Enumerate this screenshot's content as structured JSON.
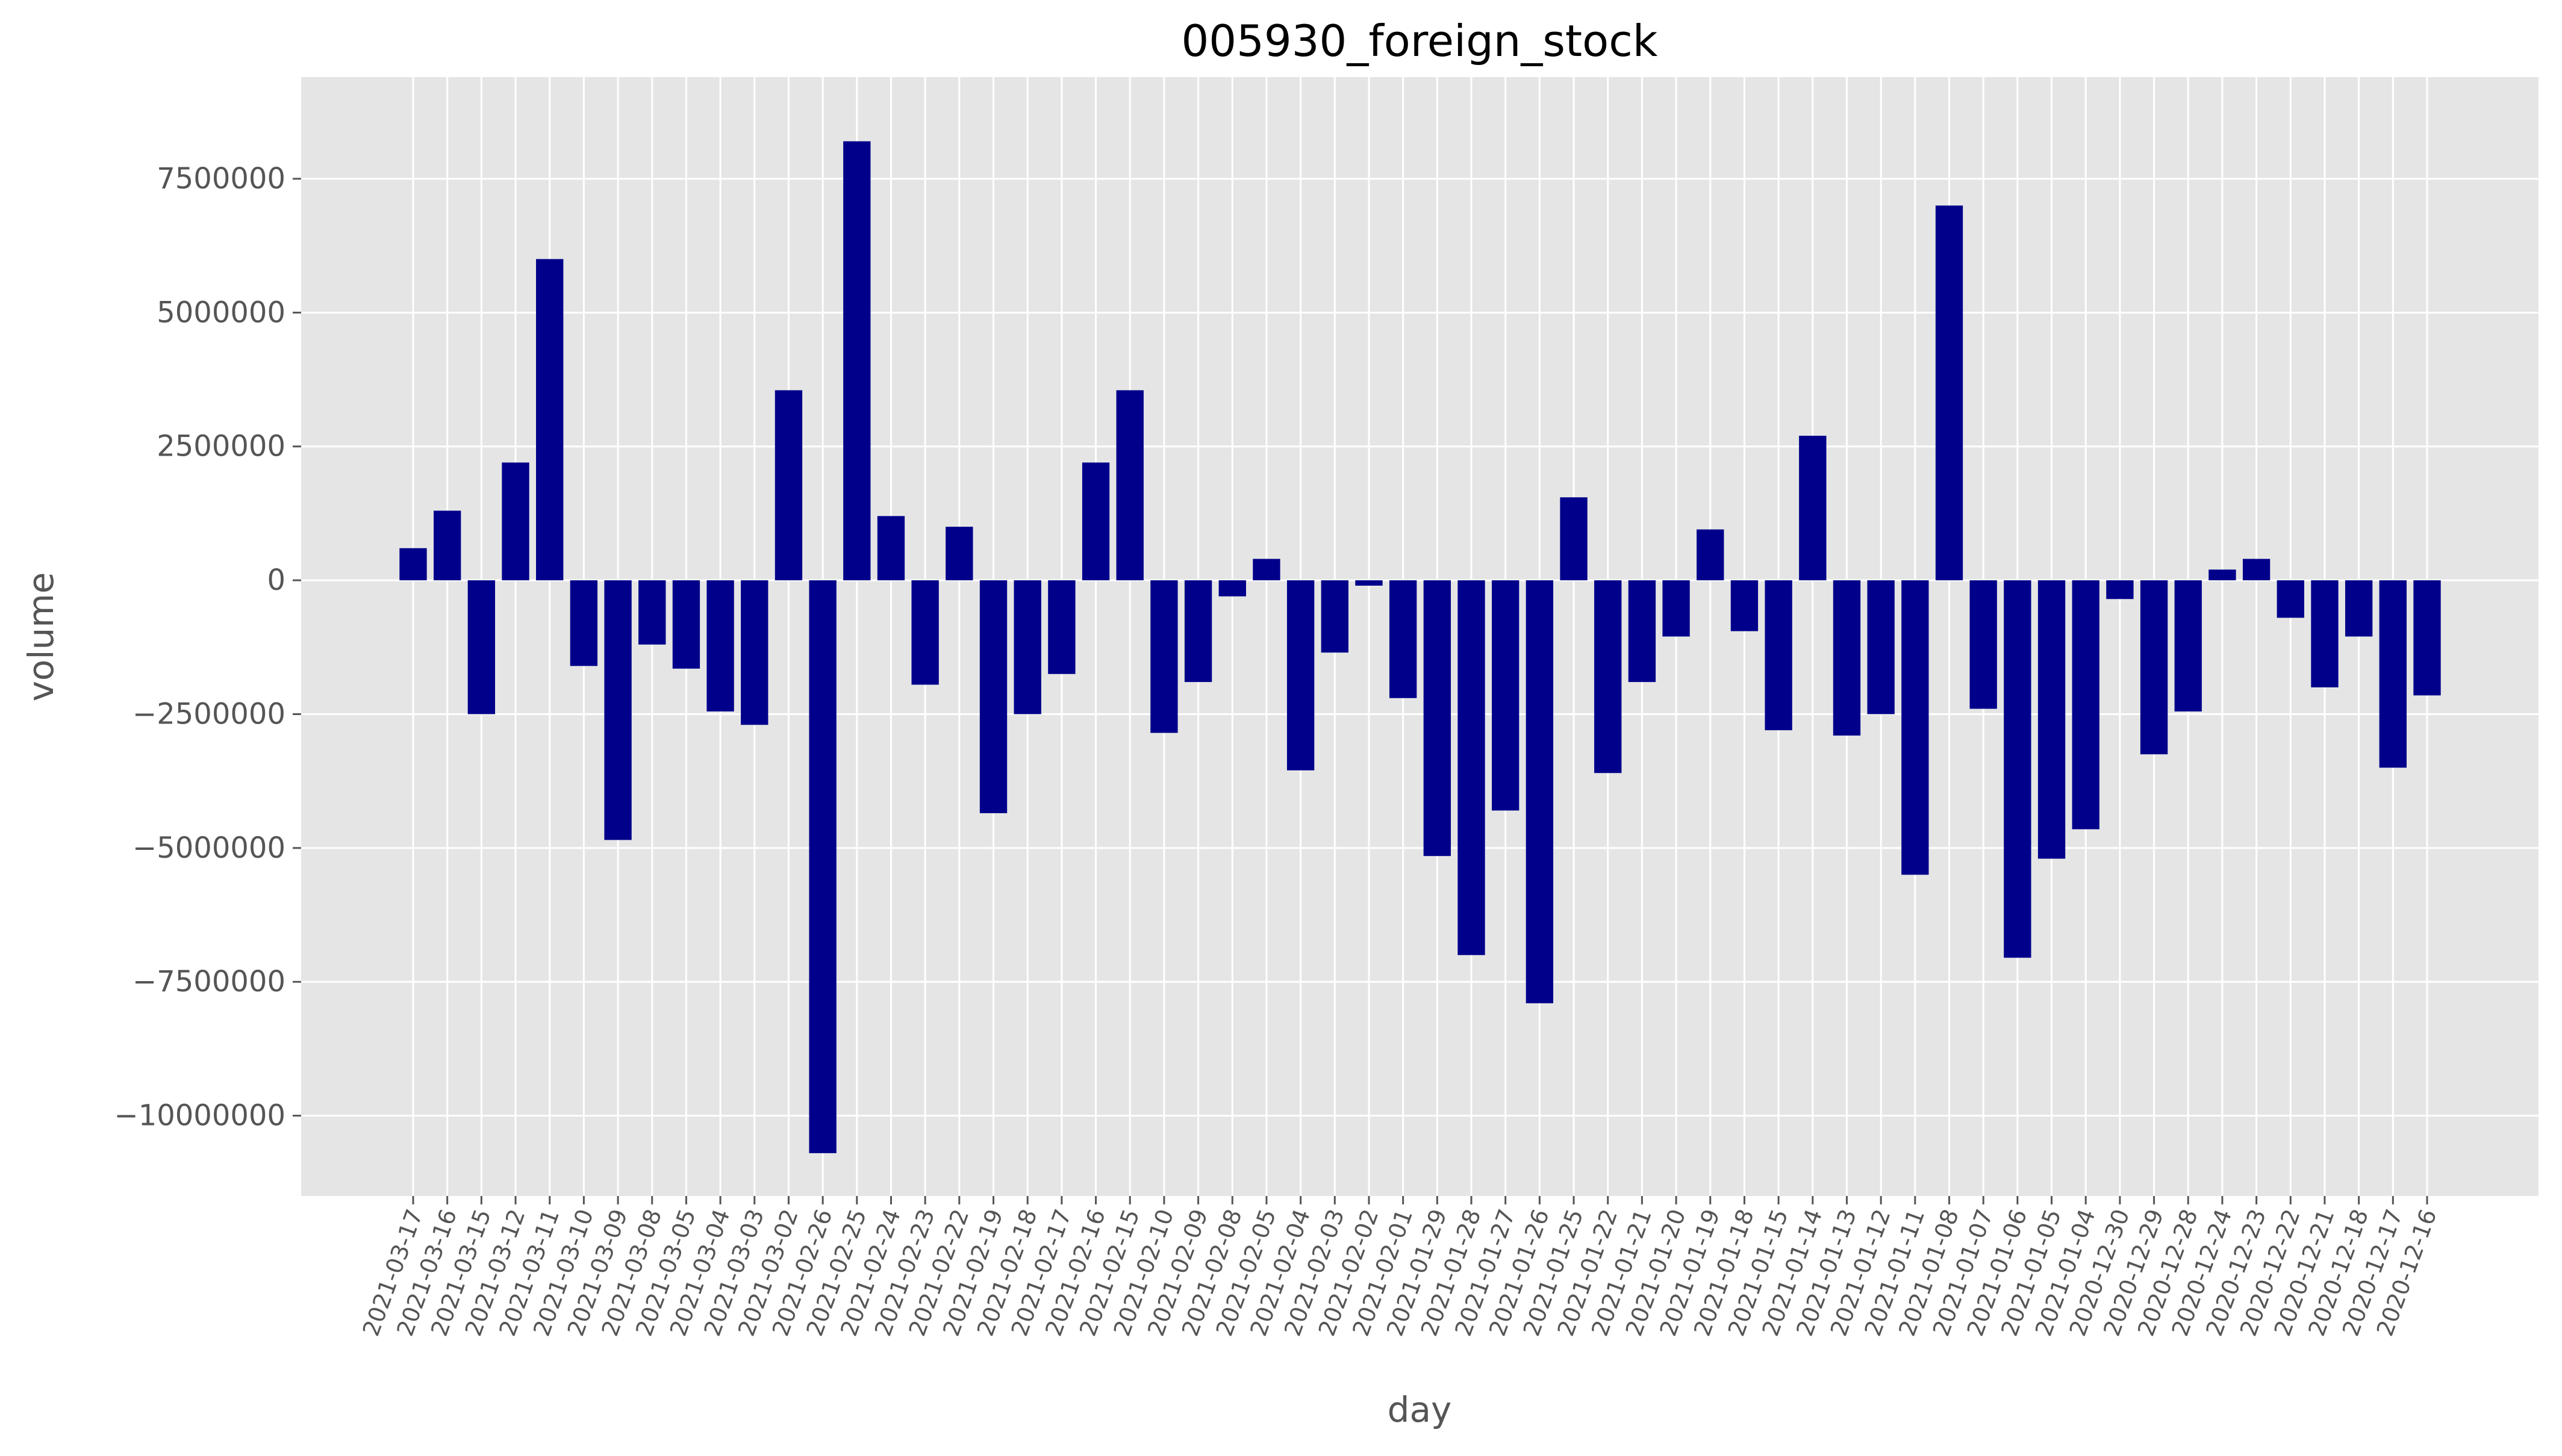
{
  "chart_data": {
    "type": "bar",
    "title": "005930_foreign_stock",
    "xlabel": "day",
    "ylabel": "volume",
    "ylim": [
      -11500000,
      9400000
    ],
    "yticks": [
      -10000000,
      -7500000,
      -5000000,
      -2500000,
      0,
      2500000,
      5000000,
      7500000
    ],
    "ytick_labels": [
      "−10000000",
      "−7500000",
      "−5000000",
      "−2500000",
      "0",
      "2500000",
      "5000000",
      "7500000"
    ],
    "grid": true,
    "colors": {
      "bar": "#00008b",
      "plot_bg": "#e5e5e5",
      "grid": "#ffffff",
      "text": "#555555",
      "title": "#000000"
    },
    "categories": [
      "2021-03-17",
      "2021-03-16",
      "2021-03-15",
      "2021-03-12",
      "2021-03-11",
      "2021-03-10",
      "2021-03-09",
      "2021-03-08",
      "2021-03-05",
      "2021-03-04",
      "2021-03-03",
      "2021-03-02",
      "2021-02-26",
      "2021-02-25",
      "2021-02-24",
      "2021-02-23",
      "2021-02-22",
      "2021-02-19",
      "2021-02-18",
      "2021-02-17",
      "2021-02-16",
      "2021-02-15",
      "2021-02-10",
      "2021-02-09",
      "2021-02-08",
      "2021-02-05",
      "2021-02-04",
      "2021-02-03",
      "2021-02-02",
      "2021-02-01",
      "2021-01-29",
      "2021-01-28",
      "2021-01-27",
      "2021-01-26",
      "2021-01-25",
      "2021-01-22",
      "2021-01-21",
      "2021-01-20",
      "2021-01-19",
      "2021-01-18",
      "2021-01-15",
      "2021-01-14",
      "2021-01-13",
      "2021-01-12",
      "2021-01-11",
      "2021-01-08",
      "2021-01-07",
      "2021-01-06",
      "2021-01-05",
      "2021-01-04",
      "2020-12-30",
      "2020-12-29",
      "2020-12-28",
      "2020-12-24",
      "2020-12-23",
      "2020-12-22",
      "2020-12-21",
      "2020-12-18",
      "2020-12-17",
      "2020-12-16"
    ],
    "values": [
      600000,
      1300000,
      -2500000,
      2200000,
      6000000,
      -1600000,
      -4850000,
      -1200000,
      -1650000,
      -2450000,
      -2700000,
      3550000,
      -10700000,
      8200000,
      1200000,
      -1950000,
      1000000,
      -4350000,
      -2500000,
      -1750000,
      2200000,
      3550000,
      -2850000,
      -1900000,
      -300000,
      400000,
      -3550000,
      -1350000,
      -100000,
      -2200000,
      -5150000,
      -7000000,
      -4300000,
      -7900000,
      1550000,
      -3600000,
      -1900000,
      -1050000,
      950000,
      -950000,
      -2800000,
      2700000,
      -2900000,
      -2500000,
      -5500000,
      7000000,
      -2400000,
      -7050000,
      -5200000,
      -4650000,
      -350000,
      -3250000,
      -2450000,
      200000,
      400000,
      -700000,
      -2000000,
      -1050000,
      -3500000,
      -2150000
    ]
  }
}
